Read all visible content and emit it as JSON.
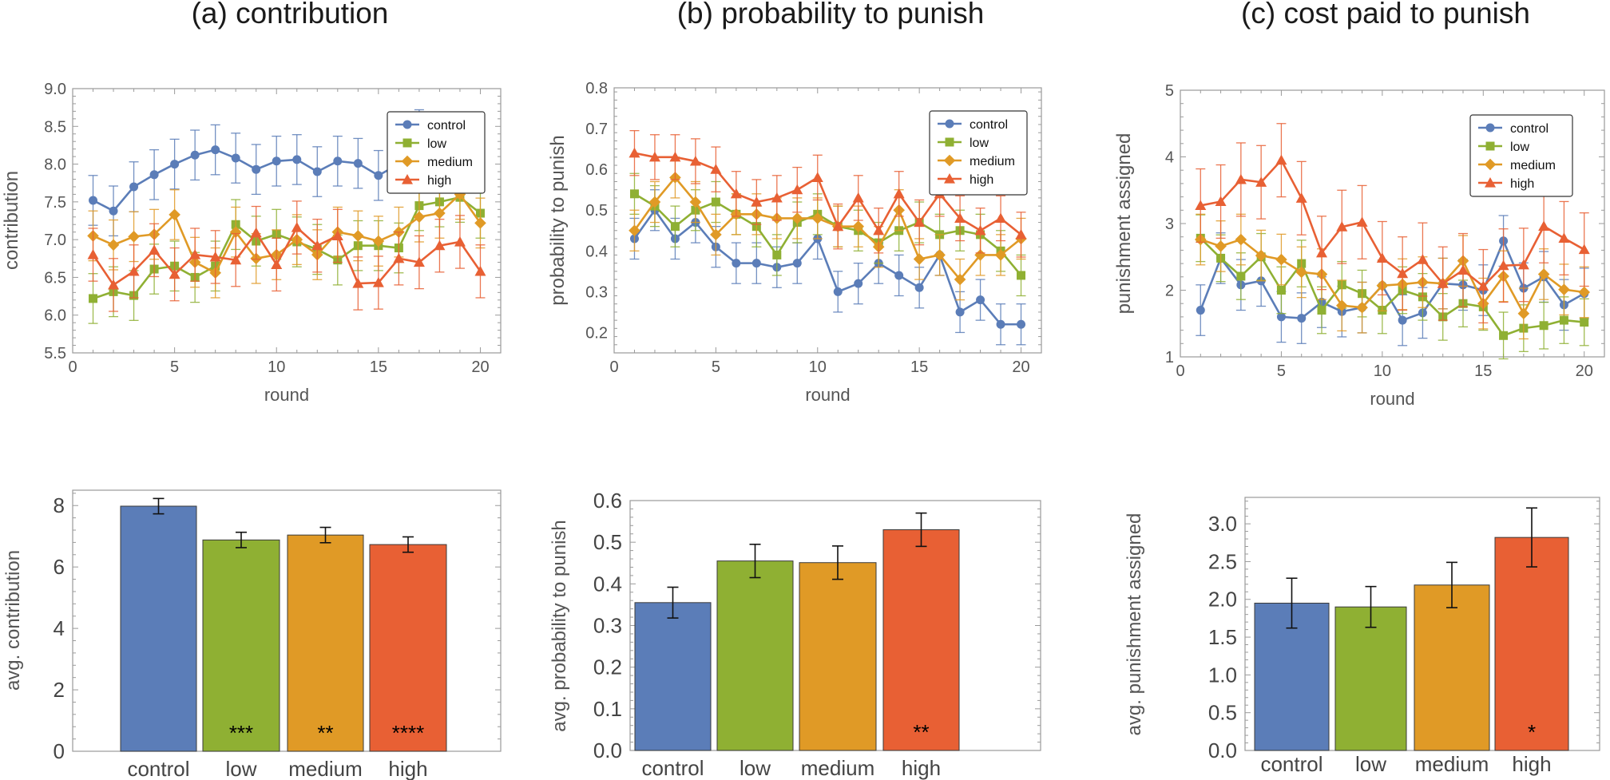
{
  "titles": [
    "(a) contribution",
    "(b) probability to punish",
    "(c) cost paid to punish"
  ],
  "colors": {
    "control": "#5b7db8",
    "low": "#8fb033",
    "medium": "#e09a26",
    "high": "#e86034"
  },
  "chart_data": [
    {
      "type": "line",
      "xlabel": "round",
      "ylabel": "contribution",
      "xlim": [
        0,
        21
      ],
      "ylim": [
        5.5,
        9.0
      ],
      "xticks": [
        0,
        5,
        10,
        15,
        20
      ],
      "yticks": [
        5.5,
        6.0,
        6.5,
        7.0,
        7.5,
        8.0,
        8.5,
        9.0
      ],
      "ytick_labels": [
        "5.5",
        "6.0",
        "6.5",
        "7.0",
        "7.5",
        "8.0",
        "8.5",
        "9.0"
      ],
      "legend": "top-right",
      "x": [
        1,
        2,
        3,
        4,
        5,
        6,
        7,
        8,
        9,
        10,
        11,
        12,
        13,
        14,
        15,
        16,
        17,
        18,
        19,
        20
      ],
      "series": [
        {
          "name": "control",
          "marker": "circle",
          "err": 0.33,
          "values": [
            7.52,
            7.38,
            7.7,
            7.86,
            8.0,
            8.12,
            8.19,
            8.08,
            7.93,
            8.04,
            8.06,
            7.9,
            8.04,
            8.01,
            7.85,
            8.0,
            8.39,
            8.17,
            8.2,
            8.11
          ]
        },
        {
          "name": "low",
          "marker": "square",
          "err": 0.33,
          "values": [
            6.22,
            6.31,
            6.26,
            6.61,
            6.65,
            6.5,
            6.65,
            7.2,
            6.98,
            7.07,
            6.97,
            6.87,
            6.73,
            6.92,
            6.92,
            6.89,
            7.45,
            7.5,
            7.56,
            7.35
          ]
        },
        {
          "name": "medium",
          "marker": "diamond",
          "err": 0.33,
          "values": [
            7.05,
            6.93,
            7.04,
            7.07,
            7.33,
            6.7,
            6.56,
            7.1,
            6.75,
            6.8,
            7.0,
            6.8,
            7.1,
            7.05,
            6.98,
            7.1,
            7.3,
            7.35,
            7.6,
            7.22
          ]
        },
        {
          "name": "high",
          "marker": "triangle",
          "err": 0.35,
          "values": [
            6.8,
            6.4,
            6.58,
            6.86,
            6.54,
            6.8,
            6.77,
            6.73,
            7.09,
            6.67,
            7.16,
            6.92,
            7.05,
            6.42,
            6.43,
            6.75,
            6.7,
            6.92,
            6.97,
            6.58
          ]
        }
      ]
    },
    {
      "type": "line",
      "xlabel": "round",
      "ylabel": "probability to punish",
      "xlim": [
        0,
        21
      ],
      "ylim": [
        0.15,
        0.8
      ],
      "xticks": [
        0,
        5,
        10,
        15,
        20
      ],
      "yticks": [
        0.2,
        0.3,
        0.4,
        0.5,
        0.6,
        0.7,
        0.8
      ],
      "ytick_labels": [
        "0.2",
        "0.3",
        "0.4",
        "0.5",
        "0.6",
        "0.7",
        "0.8"
      ],
      "legend": "top-right",
      "x": [
        1,
        2,
        3,
        4,
        5,
        6,
        7,
        8,
        9,
        10,
        11,
        12,
        13,
        14,
        15,
        16,
        17,
        18,
        19,
        20
      ],
      "series": [
        {
          "name": "control",
          "marker": "circle",
          "err": 0.05,
          "values": [
            0.43,
            0.5,
            0.43,
            0.47,
            0.41,
            0.37,
            0.37,
            0.36,
            0.37,
            0.43,
            0.3,
            0.32,
            0.37,
            0.34,
            0.31,
            0.39,
            0.25,
            0.28,
            0.22,
            0.22
          ]
        },
        {
          "name": "low",
          "marker": "square",
          "err": 0.05,
          "values": [
            0.54,
            0.51,
            0.46,
            0.5,
            0.52,
            0.49,
            0.46,
            0.39,
            0.47,
            0.49,
            0.46,
            0.45,
            0.42,
            0.45,
            0.47,
            0.44,
            0.45,
            0.44,
            0.4,
            0.34
          ]
        },
        {
          "name": "medium",
          "marker": "diamond",
          "err": 0.05,
          "values": [
            0.45,
            0.52,
            0.58,
            0.52,
            0.44,
            0.49,
            0.49,
            0.48,
            0.48,
            0.48,
            0.46,
            0.46,
            0.41,
            0.5,
            0.38,
            0.39,
            0.33,
            0.39,
            0.39,
            0.43
          ]
        },
        {
          "name": "high",
          "marker": "triangle",
          "err": 0.055,
          "values": [
            0.64,
            0.63,
            0.63,
            0.62,
            0.6,
            0.54,
            0.52,
            0.53,
            0.55,
            0.58,
            0.46,
            0.53,
            0.45,
            0.54,
            0.47,
            0.54,
            0.48,
            0.45,
            0.48,
            0.44
          ]
        }
      ]
    },
    {
      "type": "line",
      "xlabel": "round",
      "ylabel": "punishment assigned",
      "xlim": [
        0,
        21
      ],
      "ylim": [
        1,
        5
      ],
      "xticks": [
        0,
        5,
        10,
        15,
        20
      ],
      "yticks": [
        1,
        2,
        3,
        4,
        5
      ],
      "ytick_labels": [
        "1",
        "2",
        "3",
        "4",
        "5"
      ],
      "legend": "top-right",
      "x": [
        1,
        2,
        3,
        4,
        5,
        6,
        7,
        8,
        9,
        10,
        11,
        12,
        13,
        14,
        15,
        16,
        17,
        18,
        19,
        20
      ],
      "series": [
        {
          "name": "control",
          "marker": "circle",
          "err": 0.38,
          "values": [
            1.7,
            2.48,
            2.08,
            2.14,
            1.6,
            1.58,
            1.82,
            1.68,
            1.74,
            2.07,
            1.55,
            1.66,
            2.1,
            2.08,
            2.0,
            2.74,
            2.03,
            2.2,
            1.78,
            1.95
          ]
        },
        {
          "name": "low",
          "marker": "square",
          "err": 0.35,
          "values": [
            2.78,
            2.48,
            2.21,
            2.5,
            2.0,
            2.4,
            1.7,
            2.08,
            1.95,
            1.7,
            2.0,
            1.9,
            1.6,
            1.8,
            1.75,
            1.32,
            1.43,
            1.47,
            1.55,
            1.52
          ]
        },
        {
          "name": "medium",
          "marker": "diamond",
          "err": 0.38,
          "values": [
            2.76,
            2.66,
            2.76,
            2.52,
            2.46,
            2.27,
            2.24,
            1.77,
            1.74,
            2.07,
            2.09,
            2.12,
            2.1,
            2.44,
            1.8,
            2.21,
            1.65,
            2.24,
            2.01,
            1.97
          ]
        },
        {
          "name": "high",
          "marker": "triangle",
          "err": 0.55,
          "values": [
            3.27,
            3.33,
            3.66,
            3.62,
            3.95,
            3.38,
            2.56,
            2.95,
            3.02,
            2.48,
            2.25,
            2.46,
            2.1,
            2.3,
            2.06,
            2.37,
            2.38,
            2.96,
            2.78,
            2.61
          ]
        }
      ]
    },
    {
      "type": "bar",
      "ylabel": "avg. contribution",
      "ylim": [
        0,
        8.5
      ],
      "yticks": [
        0,
        2,
        4,
        6,
        8
      ],
      "ytick_labels": [
        "0",
        "2",
        "4",
        "6",
        "8"
      ],
      "categories": [
        "control",
        "low",
        "medium",
        "high"
      ],
      "values": [
        7.98,
        6.88,
        7.04,
        6.73
      ],
      "errors": [
        0.25,
        0.25,
        0.25,
        0.25
      ],
      "annotations": [
        "",
        "***",
        "**",
        "****"
      ]
    },
    {
      "type": "bar",
      "ylabel": "avg. probability to punish",
      "ylim": [
        0,
        0.6
      ],
      "yticks": [
        0,
        0.1,
        0.2,
        0.3,
        0.4,
        0.5,
        0.6
      ],
      "ytick_labels": [
        "0.0",
        "0.1",
        "0.2",
        "0.3",
        "0.4",
        "0.5",
        "0.6"
      ],
      "categories": [
        "control",
        "low",
        "medium",
        "high"
      ],
      "values": [
        0.355,
        0.455,
        0.451,
        0.53
      ],
      "errors": [
        0.037,
        0.04,
        0.04,
        0.04
      ],
      "annotations": [
        "",
        "",
        "",
        "**"
      ]
    },
    {
      "type": "bar",
      "ylabel": "avg. punishment assigned",
      "ylim": [
        0,
        3.35
      ],
      "yticks": [
        0,
        0.5,
        1.0,
        1.5,
        2.0,
        2.5,
        3.0
      ],
      "ytick_labels": [
        "0.0",
        "0.5",
        "1.0",
        "1.5",
        "2.0",
        "2.5",
        "3.0"
      ],
      "categories": [
        "control",
        "low",
        "medium",
        "high"
      ],
      "values": [
        1.95,
        1.9,
        2.19,
        2.82
      ],
      "errors": [
        0.33,
        0.27,
        0.3,
        0.39
      ],
      "annotations": [
        "",
        "",
        "",
        "*"
      ]
    }
  ]
}
